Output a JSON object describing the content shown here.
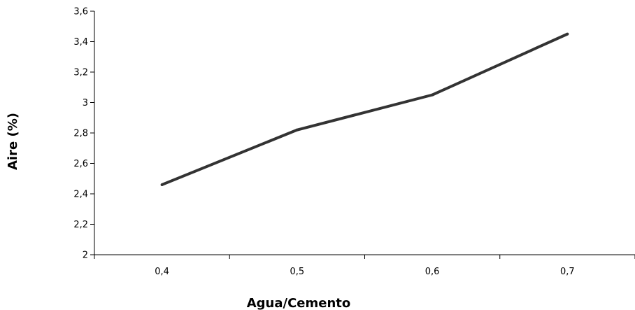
{
  "chart_data": {
    "type": "line",
    "title": "",
    "xlabel": "Agua/Cemento",
    "ylabel": "Aire (%)",
    "categories": [
      "0,4",
      "0,5",
      "0,6",
      "0,7"
    ],
    "series": [
      {
        "values": [
          2.46,
          2.82,
          3.05,
          3.45
        ]
      }
    ],
    "ylim": [
      2,
      3.6
    ],
    "y_ticks": [
      2,
      2.2,
      2.4,
      2.6,
      2.8,
      3,
      3.2,
      3.4,
      3.6
    ],
    "y_tick_labels": [
      "2",
      "2,2",
      "2,4",
      "2,6",
      "2,8",
      "3",
      "3,2",
      "3,4",
      "3,6"
    ],
    "grid": false,
    "legend": "none",
    "line_color": "#333333",
    "axis_color": "#000000"
  }
}
